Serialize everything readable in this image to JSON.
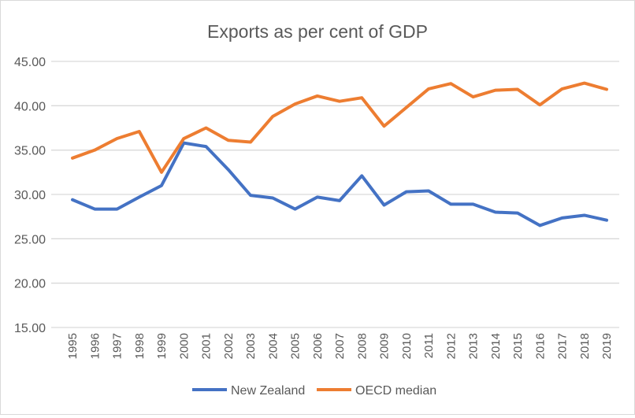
{
  "chart_data": {
    "type": "line",
    "title": "Exports as per cent of GDP",
    "xlabel": "",
    "ylabel": "",
    "ylim": [
      15,
      45
    ],
    "yticks": [
      "15.00",
      "20.00",
      "25.00",
      "30.00",
      "35.00",
      "40.00",
      "45.00"
    ],
    "grid": true,
    "legend_position": "bottom",
    "categories": [
      "1995",
      "1996",
      "1997",
      "1998",
      "1999",
      "2000",
      "2001",
      "2002",
      "2003",
      "2004",
      "2005",
      "2006",
      "2007",
      "2008",
      "2009",
      "2010",
      "2011",
      "2012",
      "2013",
      "2014",
      "2015",
      "2016",
      "2017",
      "2018",
      "2019"
    ],
    "series": [
      {
        "name": "New Zealand",
        "color": "#4472c4",
        "values": [
          29.4,
          28.35,
          28.35,
          29.7,
          31.0,
          35.8,
          35.4,
          32.8,
          29.9,
          29.6,
          28.35,
          29.7,
          29.3,
          32.1,
          28.8,
          30.3,
          30.4,
          28.9,
          28.9,
          28.0,
          27.9,
          26.5,
          27.35,
          27.65,
          27.1
        ]
      },
      {
        "name": "OECD median",
        "color": "#ed7d31",
        "values": [
          34.1,
          35.0,
          36.3,
          37.1,
          32.5,
          36.3,
          37.5,
          36.1,
          35.9,
          38.8,
          40.2,
          41.1,
          40.5,
          40.9,
          37.7,
          39.8,
          41.9,
          42.5,
          41.0,
          41.75,
          41.85,
          40.1,
          41.9,
          42.55,
          41.85
        ]
      }
    ]
  }
}
